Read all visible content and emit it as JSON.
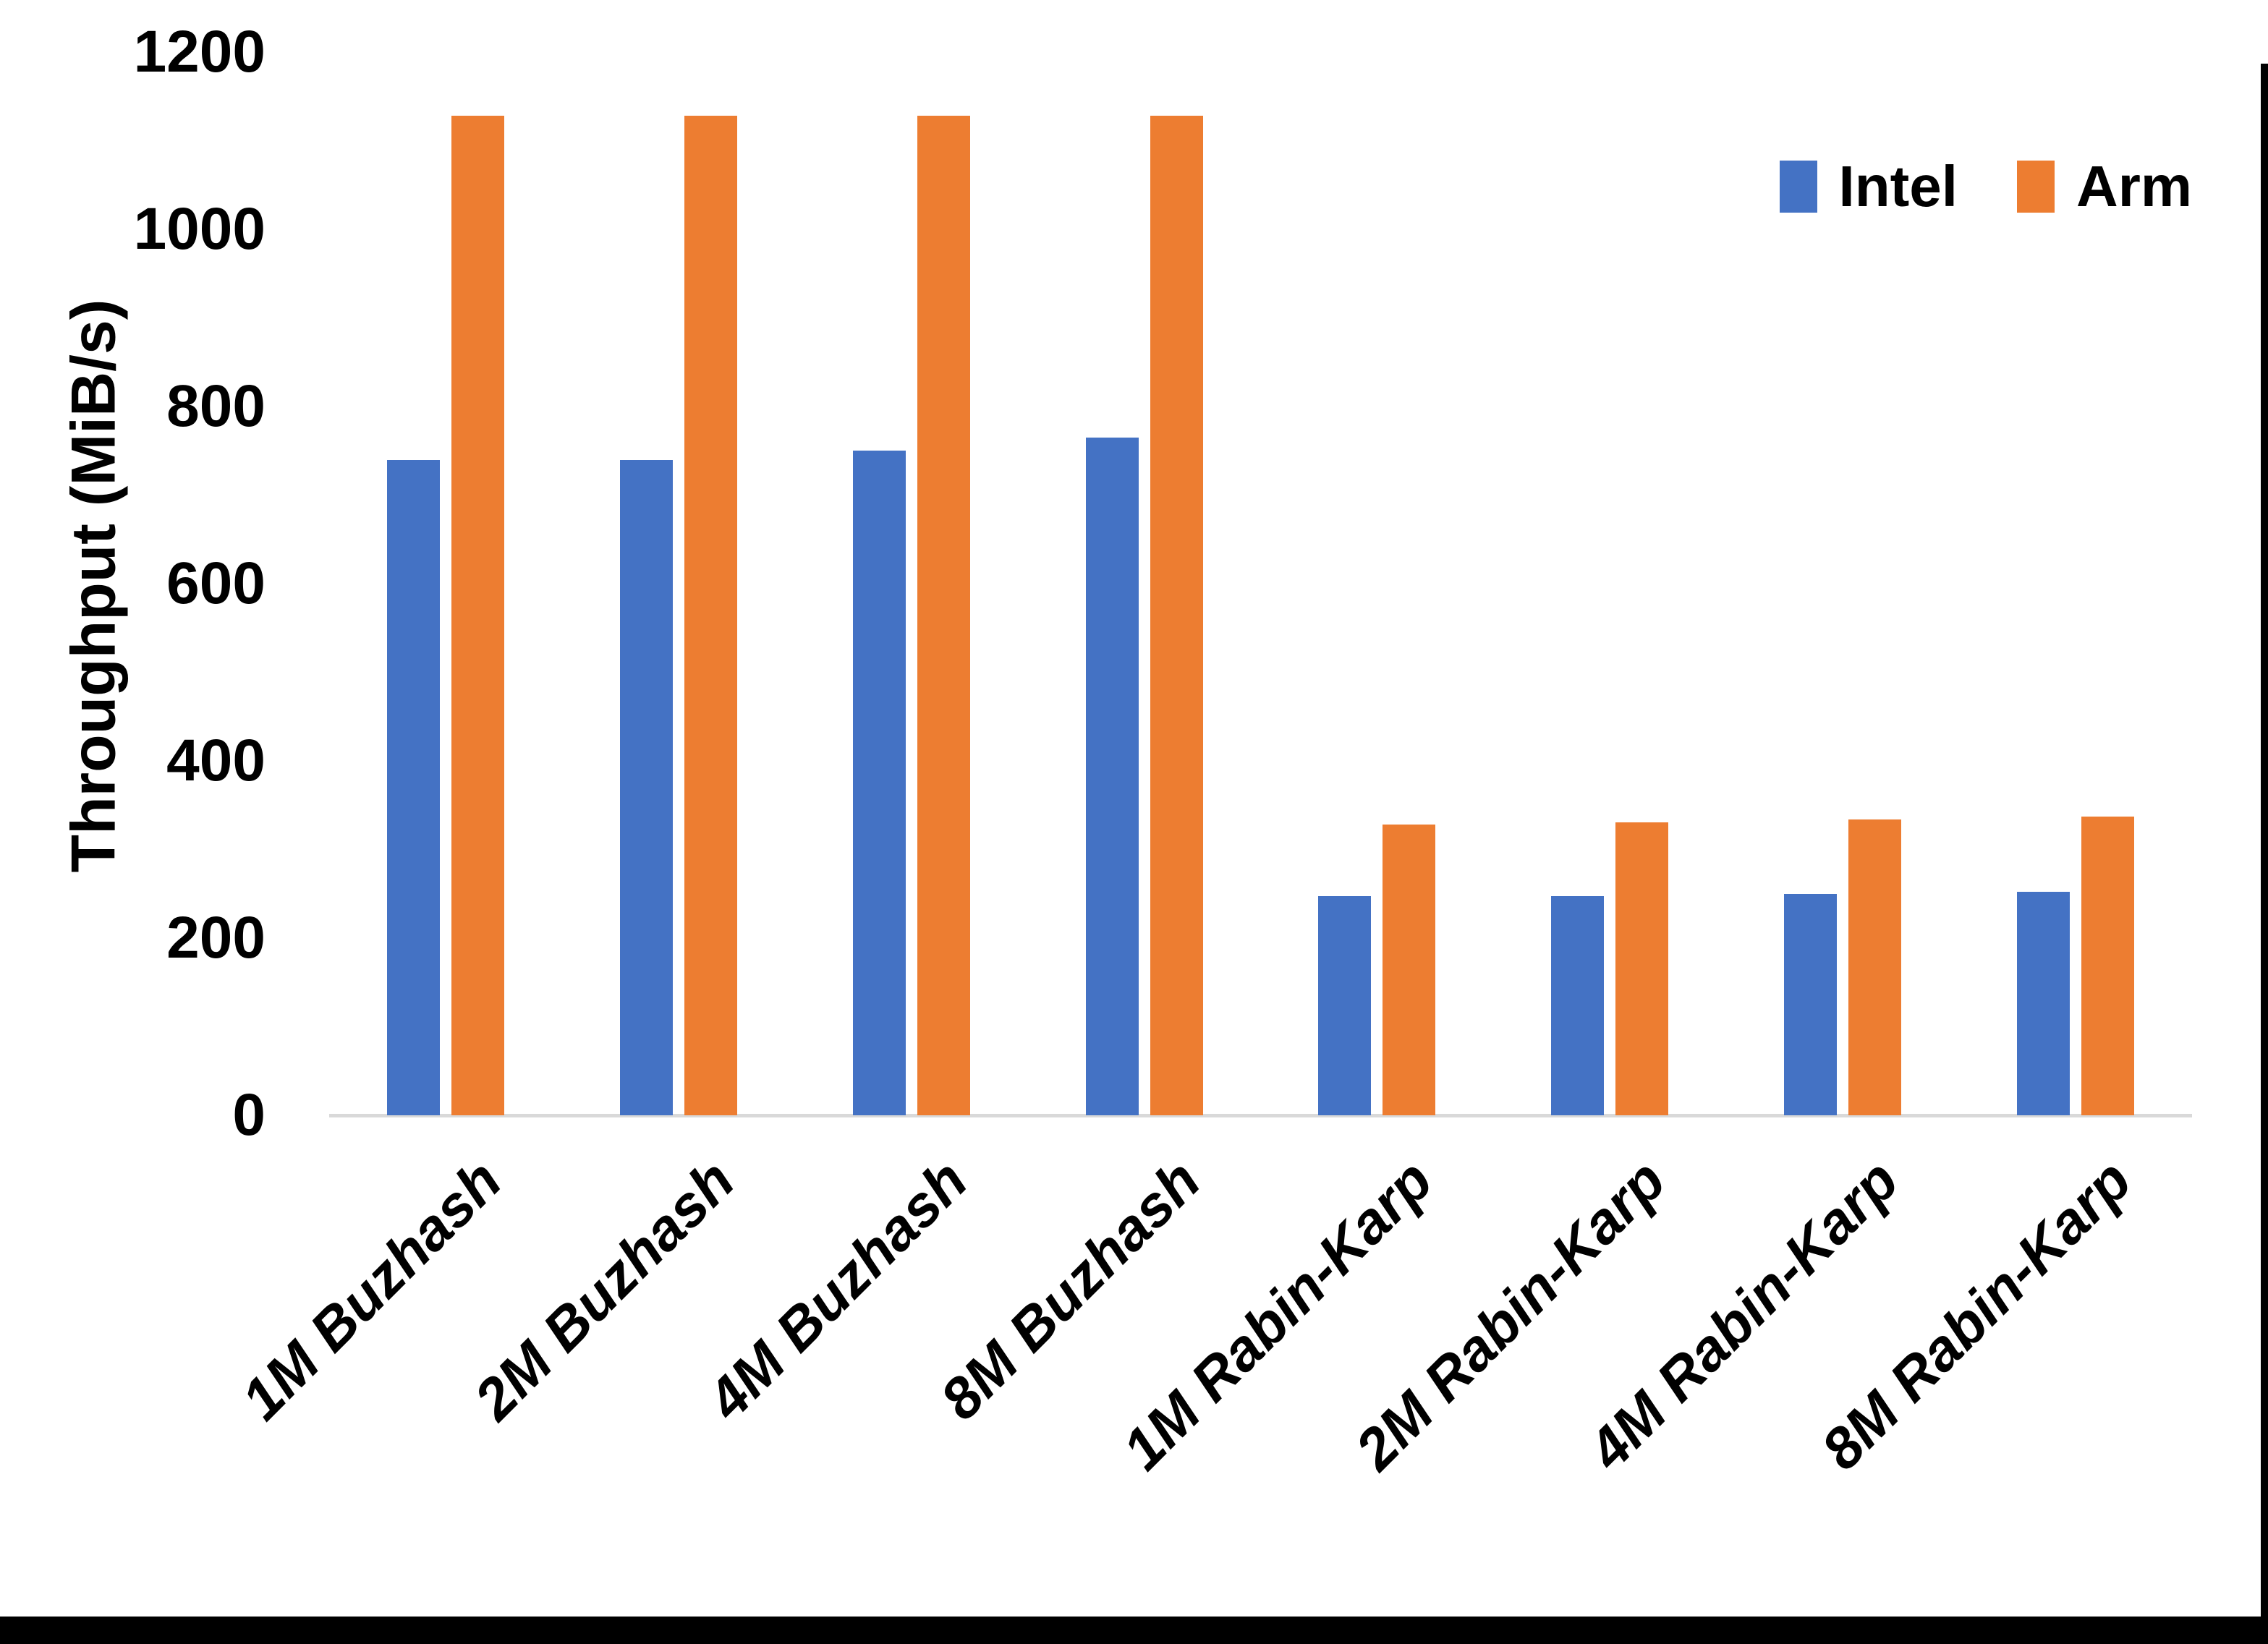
{
  "chart_data": {
    "type": "bar",
    "title": "",
    "xlabel": "",
    "ylabel": "Throughput (MiB/s)",
    "ylim": [
      0,
      1200
    ],
    "ytick_step": 200,
    "yticks": [
      0,
      200,
      400,
      600,
      800,
      1000,
      1200
    ],
    "grid": false,
    "legend_position": "top-right",
    "categories": [
      "1M Buzhash",
      "2M Buzhash",
      "4M Buzhash",
      "8M Buzhash",
      "1M Rabin-Karp",
      "2M Rabin-Karp",
      "4M Rabin-Karp",
      "8M Rabin-Karp"
    ],
    "series": [
      {
        "name": "Intel",
        "color": "#4472C4",
        "values": [
          740,
          740,
          750,
          765,
          247,
          247,
          250,
          252
        ]
      },
      {
        "name": "Arm",
        "color": "#ED7D31",
        "values": [
          1128,
          1128,
          1128,
          1128,
          328,
          331,
          334,
          337
        ]
      }
    ]
  },
  "legend": {
    "items": [
      {
        "label": "Intel",
        "color": "#4472C4"
      },
      {
        "label": "Arm",
        "color": "#ED7D31"
      }
    ]
  },
  "colors": {
    "intel_bar": "#4472C4",
    "arm_bar": "#ED7D31",
    "axis_line": "#D9D9D9",
    "text": "#000000",
    "page_edge": "#000000",
    "background": "#FFFFFF"
  }
}
